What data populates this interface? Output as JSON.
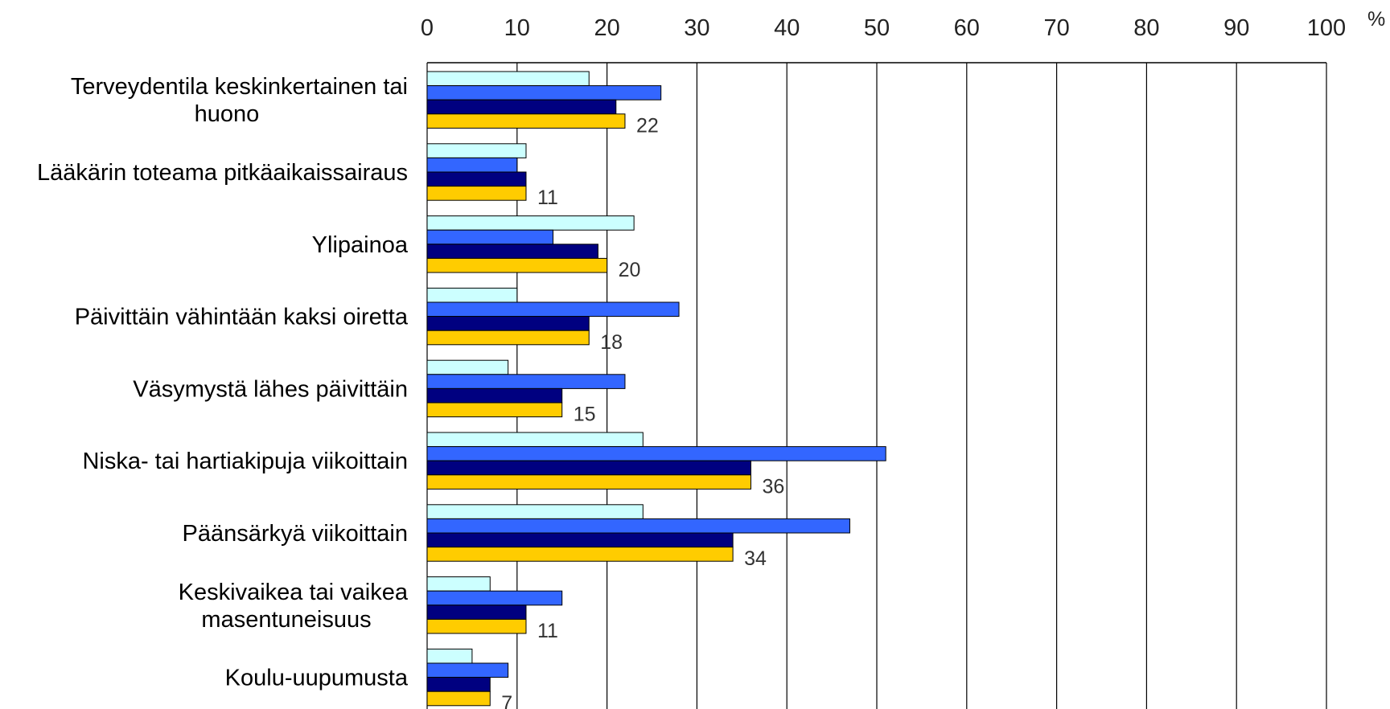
{
  "chart_data": {
    "type": "bar",
    "orientation": "horizontal",
    "unit": "%",
    "xlim": [
      0,
      100
    ],
    "x_ticks": [
      0,
      10,
      20,
      30,
      40,
      50,
      60,
      70,
      80,
      90,
      100
    ],
    "grid": true,
    "legend": "none",
    "categories": [
      "Terveydentila keskinkertainen tai huono",
      "Lääkärin toteama pitkäaikaissairaus",
      "Ylipainoa",
      "Päivittäin vähintään kaksi oiretta",
      "Väsymystä lähes päivittäin",
      "Niska- tai hartiakipuja viikoittain",
      "Päänsärkyä viikoittain",
      "Keskivaikea tai vaikea masentuneisuus",
      "Koulu-uupumusta"
    ],
    "category_lines": [
      [
        "Terveydentila keskinkertainen tai",
        "huono"
      ],
      [
        "Lääkärin toteama pitkäaikaissairaus"
      ],
      [
        "Ylipainoa"
      ],
      [
        "Päivittäin vähintään kaksi oiretta"
      ],
      [
        "Väsymystä lähes päivittäin"
      ],
      [
        "Niska- tai hartiakipuja viikoittain"
      ],
      [
        "Päänsärkyä viikoittain"
      ],
      [
        "Keskivaikea tai vaikea",
        "masentuneisuus"
      ],
      [
        "Koulu-uupumusta"
      ]
    ],
    "series": [
      {
        "color": "#ccffff",
        "values": [
          18,
          11,
          23,
          10,
          9,
          24,
          24,
          7,
          5
        ]
      },
      {
        "color": "#3366ff",
        "values": [
          26,
          10,
          14,
          28,
          22,
          51,
          47,
          15,
          9
        ]
      },
      {
        "color": "#000080",
        "values": [
          21,
          11,
          19,
          18,
          15,
          36,
          34,
          11,
          7
        ]
      },
      {
        "color": "#ffcc00",
        "values": [
          22,
          11,
          20,
          18,
          15,
          36,
          34,
          11,
          7
        ],
        "labeled": true
      }
    ],
    "data_labels": [
      "22",
      "11",
      "20",
      "18",
      "15",
      "36",
      "34",
      "11",
      "7"
    ]
  }
}
